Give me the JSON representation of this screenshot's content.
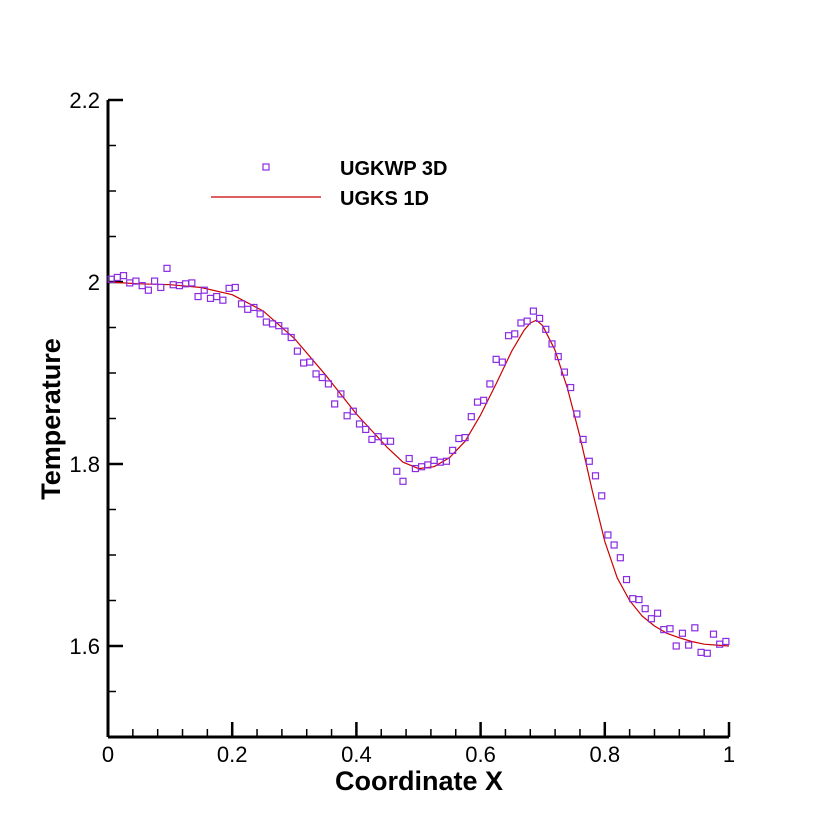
{
  "chart_data": {
    "type": "scatter",
    "xlabel": "Coordinate X",
    "ylabel": "Temperature",
    "xlim": [
      0,
      1
    ],
    "ylim": [
      1.5,
      2.2
    ],
    "x_ticks": [
      "0",
      "0.2",
      "0.4",
      "0.6",
      "0.8",
      "1"
    ],
    "y_ticks": [
      "1.6",
      "1.8",
      "2",
      "2.2"
    ],
    "grid": false,
    "legend_position": "top-left",
    "colors": {
      "scatter": "#8a2be2",
      "line": "#cc0000",
      "axis": "#000000"
    },
    "series": [
      {
        "name": "UGKWP 3D",
        "kind": "scatter",
        "marker": "square",
        "x": [
          0.005,
          0.015,
          0.025,
          0.035,
          0.045,
          0.055,
          0.065,
          0.075,
          0.085,
          0.095,
          0.105,
          0.115,
          0.125,
          0.135,
          0.145,
          0.155,
          0.165,
          0.175,
          0.185,
          0.195,
          0.205,
          0.215,
          0.225,
          0.235,
          0.245,
          0.255,
          0.265,
          0.275,
          0.285,
          0.295,
          0.305,
          0.315,
          0.325,
          0.335,
          0.345,
          0.355,
          0.365,
          0.375,
          0.385,
          0.395,
          0.405,
          0.415,
          0.425,
          0.435,
          0.445,
          0.455,
          0.465,
          0.475,
          0.485,
          0.495,
          0.505,
          0.515,
          0.525,
          0.535,
          0.545,
          0.555,
          0.565,
          0.575,
          0.585,
          0.595,
          0.605,
          0.615,
          0.625,
          0.635,
          0.645,
          0.655,
          0.665,
          0.675,
          0.685,
          0.695,
          0.705,
          0.715,
          0.725,
          0.735,
          0.745,
          0.755,
          0.765,
          0.775,
          0.785,
          0.795,
          0.805,
          0.815,
          0.825,
          0.835,
          0.845,
          0.855,
          0.865,
          0.875,
          0.885,
          0.895,
          0.905,
          0.915,
          0.925,
          0.935,
          0.945,
          0.955,
          0.965,
          0.975,
          0.985,
          0.995
        ],
        "y": [
          2.003,
          2.005,
          2.007,
          1.999,
          2.001,
          1.996,
          1.991,
          2.001,
          1.994,
          2.015,
          1.997,
          1.996,
          1.998,
          1.999,
          1.984,
          1.991,
          1.982,
          1.984,
          1.98,
          1.993,
          1.994,
          1.976,
          1.97,
          1.972,
          1.965,
          1.956,
          1.954,
          1.952,
          1.946,
          1.939,
          1.924,
          1.911,
          1.912,
          1.899,
          1.895,
          1.888,
          1.866,
          1.877,
          1.853,
          1.858,
          1.844,
          1.838,
          1.827,
          1.83,
          1.825,
          1.825,
          1.792,
          1.781,
          1.806,
          1.795,
          1.797,
          1.799,
          1.804,
          1.802,
          1.803,
          1.815,
          1.828,
          1.829,
          1.852,
          1.868,
          1.87,
          1.888,
          1.915,
          1.912,
          1.941,
          1.943,
          1.955,
          1.957,
          1.968,
          1.96,
          1.948,
          1.932,
          1.918,
          1.901,
          1.884,
          1.855,
          1.827,
          1.803,
          1.787,
          1.765,
          1.722,
          1.711,
          1.697,
          1.673,
          1.652,
          1.651,
          1.641,
          1.63,
          1.636,
          1.618,
          1.619,
          1.6,
          1.614,
          1.601,
          1.62,
          1.593,
          1.592,
          1.613,
          1.602,
          1.605
        ]
      },
      {
        "name": "UGKS 1D",
        "kind": "line",
        "x": [
          0,
          0.05,
          0.1,
          0.15,
          0.2,
          0.25,
          0.3,
          0.35,
          0.4,
          0.45,
          0.475,
          0.5,
          0.525,
          0.55,
          0.575,
          0.6,
          0.625,
          0.65,
          0.67,
          0.68,
          0.69,
          0.7,
          0.72,
          0.74,
          0.76,
          0.78,
          0.8,
          0.82,
          0.84,
          0.86,
          0.88,
          0.9,
          0.92,
          0.94,
          0.96,
          0.98,
          1.0
        ],
        "y": [
          2.0,
          1.998,
          1.997,
          1.994,
          1.986,
          1.968,
          1.938,
          1.898,
          1.855,
          1.818,
          1.802,
          1.795,
          1.797,
          1.807,
          1.825,
          1.854,
          1.888,
          1.924,
          1.947,
          1.955,
          1.958,
          1.952,
          1.925,
          1.883,
          1.83,
          1.77,
          1.715,
          1.675,
          1.65,
          1.633,
          1.622,
          1.614,
          1.609,
          1.605,
          1.602,
          1.601,
          1.6
        ]
      }
    ]
  }
}
